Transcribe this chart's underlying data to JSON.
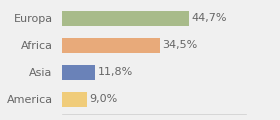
{
  "categories": [
    "Europa",
    "Africa",
    "Asia",
    "America"
  ],
  "values": [
    44.7,
    34.5,
    11.8,
    9.0
  ],
  "labels": [
    "44,7%",
    "34,5%",
    "11,8%",
    "9,0%"
  ],
  "bar_colors": [
    "#a8bb8a",
    "#e8aa7a",
    "#6a82b8",
    "#f0cc7a"
  ],
  "background_color": "#f0f0f0",
  "xlim": [
    0,
    65
  ],
  "bar_height": 0.55,
  "label_fontsize": 8,
  "ytick_fontsize": 8,
  "label_color": "#666666",
  "ytick_color": "#666666"
}
